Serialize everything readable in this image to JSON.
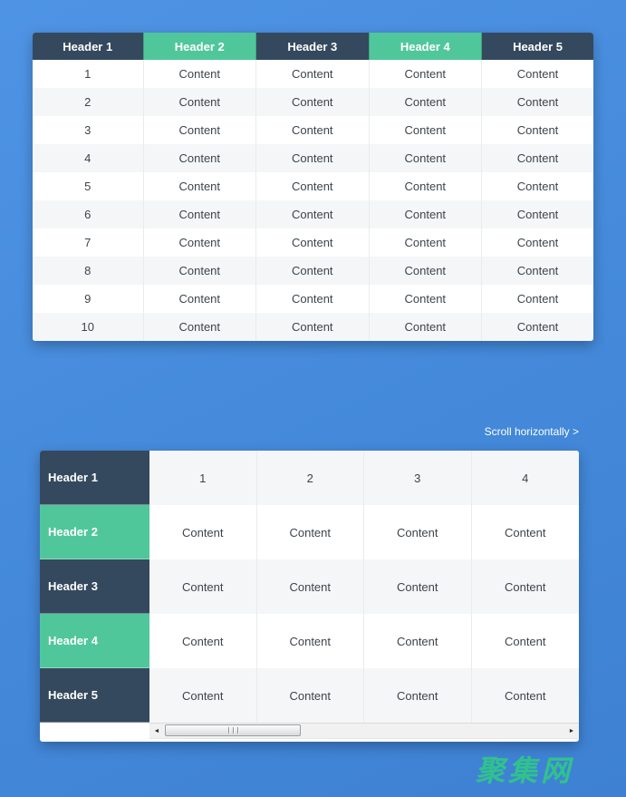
{
  "colors": {
    "page_blue_top": "#4f94e4",
    "page_blue_bottom": "#3e81d3",
    "header_dark": "#34495e",
    "header_green": "#50c79a",
    "row_alt": "#f5f6f7",
    "header_text": "#ffffff",
    "cell_text": "#3e444b",
    "watermark_green": "#2fca85"
  },
  "table1": {
    "headers": [
      {
        "label": "Header 1",
        "variant": "dark"
      },
      {
        "label": "Header 2",
        "variant": "green"
      },
      {
        "label": "Header 3",
        "variant": "dark"
      },
      {
        "label": "Header 4",
        "variant": "green"
      },
      {
        "label": "Header 5",
        "variant": "dark"
      }
    ],
    "rows": [
      [
        "1",
        "Content",
        "Content",
        "Content",
        "Content"
      ],
      [
        "2",
        "Content",
        "Content",
        "Content",
        "Content"
      ],
      [
        "3",
        "Content",
        "Content",
        "Content",
        "Content"
      ],
      [
        "4",
        "Content",
        "Content",
        "Content",
        "Content"
      ],
      [
        "5",
        "Content",
        "Content",
        "Content",
        "Content"
      ],
      [
        "6",
        "Content",
        "Content",
        "Content",
        "Content"
      ],
      [
        "7",
        "Content",
        "Content",
        "Content",
        "Content"
      ],
      [
        "8",
        "Content",
        "Content",
        "Content",
        "Content"
      ],
      [
        "9",
        "Content",
        "Content",
        "Content",
        "Content"
      ],
      [
        "10",
        "Content",
        "Content",
        "Content",
        "Content"
      ]
    ]
  },
  "table2": {
    "scroll_hint": "Scroll horizontally >",
    "row_headers": [
      {
        "label": "Header 1",
        "variant": "dark"
      },
      {
        "label": "Header 2",
        "variant": "green"
      },
      {
        "label": "Header 3",
        "variant": "dark"
      },
      {
        "label": "Header 4",
        "variant": "green"
      },
      {
        "label": "Header 5",
        "variant": "dark"
      }
    ],
    "rows": [
      [
        "1",
        "2",
        "3",
        "4"
      ],
      [
        "Content",
        "Content",
        "Content",
        "Content"
      ],
      [
        "Content",
        "Content",
        "Content",
        "Content"
      ],
      [
        "Content",
        "Content",
        "Content",
        "Content"
      ],
      [
        "Content",
        "Content",
        "Content",
        "Content"
      ]
    ],
    "scrollbar": {
      "left_arrow": "◄",
      "right_arrow": "►"
    }
  },
  "watermark": "聚集网"
}
